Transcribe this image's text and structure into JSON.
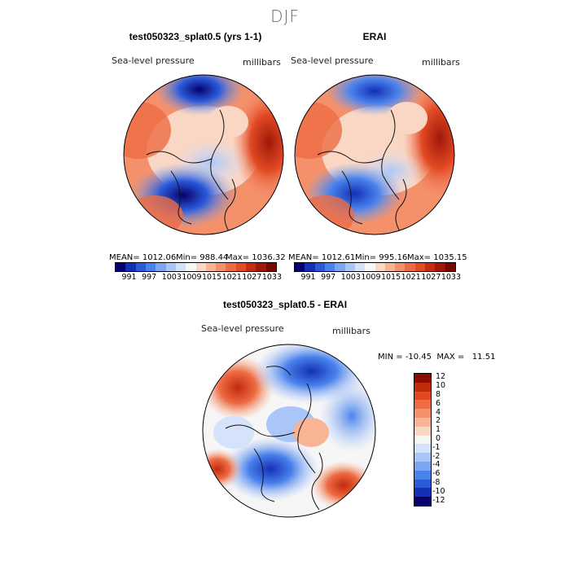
{
  "season": "DJF",
  "panels": {
    "model": {
      "title": "test050323_splat0.5 (yrs 1-1)",
      "variable": "Sea-level pressure",
      "units": "millibars",
      "mean_text": "MEAN= 1012.06",
      "min_text": "Min= 988.44",
      "max_text": "Max= 1036.32"
    },
    "obs": {
      "title": "ERAI",
      "variable": "Sea-level pressure",
      "units": "millibars",
      "mean_text": "MEAN= 1012.61",
      "min_text": "Min= 995.16",
      "max_text": "Max= 1035.15"
    },
    "diff": {
      "title": "test050323_splat0.5 - ERAI",
      "variable": "Sea-level pressure",
      "units": "millibars",
      "minmax_text": "MIN = -10.45  MAX =   11.51"
    }
  },
  "abs_colorbar": {
    "labels": [
      "991",
      "997",
      "1003",
      "1009",
      "1015",
      "1021",
      "1027",
      "1033"
    ],
    "colors": [
      "#08006e",
      "#1430b4",
      "#2a5ad8",
      "#4a82ec",
      "#7ca6f4",
      "#aac6f8",
      "#d4e2fa",
      "#f6f6f6",
      "#fad6c4",
      "#f8b494",
      "#f4906a",
      "#ee6c44",
      "#e24a24",
      "#c82c10",
      "#a01808",
      "#780a04"
    ]
  },
  "diff_colorbar": {
    "labels": [
      "12",
      "10",
      "8",
      "6",
      "4",
      "2",
      "1",
      "0",
      "-1",
      "-2",
      "-4",
      "-6",
      "-8",
      "-10",
      "-12"
    ],
    "colors": [
      "#8c0c04",
      "#c22a0c",
      "#e04a22",
      "#ee6c44",
      "#f4906a",
      "#f8b494",
      "#fad6c4",
      "#f6f6f6",
      "#d4e2fa",
      "#aac6f8",
      "#7ca6f4",
      "#4a82ec",
      "#2a5ad8",
      "#1430b4",
      "#08006e"
    ]
  }
}
